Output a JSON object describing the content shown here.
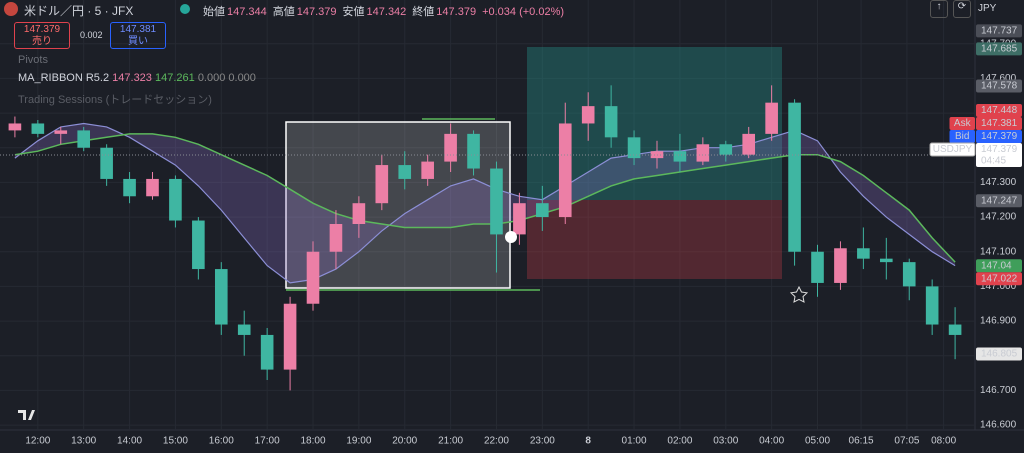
{
  "header": {
    "symbol": "米ドル／円 · 5 · JFX",
    "ohlc": [
      {
        "label": "始値",
        "value": "147.344"
      },
      {
        "label": "高値",
        "value": "147.379"
      },
      {
        "label": "安値",
        "value": "147.342"
      },
      {
        "label": "終値",
        "value": "147.379"
      }
    ],
    "change": "+0.034 (+0.02%)",
    "sell": {
      "price": "147.379",
      "label": "売り"
    },
    "spread": "0.002",
    "buy": {
      "price": "147.381",
      "label": "買い"
    },
    "currency": "JPY"
  },
  "indicators": {
    "pivots": "Pivots",
    "ma_ribbon": {
      "name": "MA_RIBBON R5.2",
      "fast": "147.323",
      "slow": "147.261",
      "extra": "0.000 0.000"
    },
    "sessions": "Trading Sessions (トレードセッション)"
  },
  "chart_data": {
    "type": "candlestick",
    "up_color": "#ec7fa6",
    "down_color": "#3fb6a2",
    "open": [
      147.45,
      147.47,
      147.44,
      147.45,
      147.4,
      147.31,
      147.26,
      147.31,
      147.19,
      147.05,
      146.89,
      146.86,
      146.76,
      146.95,
      147.1,
      147.18,
      147.24,
      147.35,
      147.31,
      147.36,
      147.44,
      147.34,
      147.15,
      147.24,
      147.2,
      147.47,
      147.52,
      147.43,
      147.37,
      147.39,
      147.36,
      147.41,
      147.38,
      147.44,
      147.53,
      147.1,
      147.01,
      147.11,
      147.08,
      147.07,
      147.0,
      146.89
    ],
    "high": [
      147.49,
      147.48,
      147.46,
      147.46,
      147.41,
      147.33,
      147.33,
      147.32,
      147.2,
      147.07,
      146.93,
      146.88,
      146.97,
      147.13,
      147.22,
      147.26,
      147.38,
      147.39,
      147.38,
      147.47,
      147.45,
      147.36,
      147.27,
      147.29,
      147.53,
      147.56,
      147.58,
      147.45,
      147.42,
      147.44,
      147.43,
      147.42,
      147.46,
      147.58,
      147.54,
      147.12,
      147.13,
      147.17,
      147.14,
      147.08,
      147.02,
      146.94
    ],
    "low": [
      147.43,
      147.43,
      147.41,
      147.39,
      147.29,
      147.24,
      147.25,
      147.17,
      147.02,
      146.86,
      146.8,
      146.73,
      146.7,
      146.93,
      147.05,
      147.14,
      147.22,
      147.28,
      147.29,
      147.33,
      147.32,
      147.04,
      147.12,
      147.16,
      147.18,
      147.42,
      147.4,
      147.35,
      147.34,
      147.33,
      147.35,
      147.36,
      147.37,
      147.42,
      147.06,
      146.97,
      146.99,
      147.05,
      147.02,
      146.96,
      146.86,
      146.79
    ],
    "close": [
      147.47,
      147.44,
      147.45,
      147.4,
      147.31,
      147.26,
      147.31,
      147.19,
      147.05,
      146.89,
      146.86,
      146.76,
      146.95,
      147.1,
      147.18,
      147.24,
      147.35,
      147.31,
      147.36,
      147.44,
      147.34,
      147.15,
      147.24,
      147.2,
      147.47,
      147.52,
      147.43,
      147.37,
      147.39,
      147.36,
      147.41,
      147.38,
      147.44,
      147.53,
      147.1,
      147.01,
      147.11,
      147.08,
      147.07,
      147.0,
      146.89,
      146.86
    ],
    "ma_ribbon": {
      "fast_color": "#8c8fd6",
      "slow_color": "#5cb85c",
      "fast": [
        147.37,
        147.42,
        147.46,
        147.47,
        147.46,
        147.43,
        147.39,
        147.35,
        147.29,
        147.22,
        147.14,
        147.06,
        147.01,
        147.02,
        147.05,
        147.1,
        147.16,
        147.21,
        147.25,
        147.29,
        147.31,
        147.28,
        147.26,
        147.25,
        147.29,
        147.33,
        147.37,
        147.38,
        147.39,
        147.39,
        147.4,
        147.4,
        147.41,
        147.43,
        147.45,
        147.42,
        147.33,
        147.26,
        147.2,
        147.15,
        147.1,
        147.06
      ],
      "slow": [
        147.38,
        147.39,
        147.41,
        147.42,
        147.43,
        147.44,
        147.44,
        147.43,
        147.41,
        147.38,
        147.35,
        147.32,
        147.28,
        147.24,
        147.21,
        147.19,
        147.18,
        147.17,
        147.17,
        147.17,
        147.18,
        147.18,
        147.19,
        147.21,
        147.23,
        147.26,
        147.29,
        147.31,
        147.32,
        147.33,
        147.34,
        147.35,
        147.36,
        147.37,
        147.38,
        147.38,
        147.36,
        147.32,
        147.27,
        147.22,
        147.14,
        147.07
      ]
    },
    "xlim": [
      -0.65,
      41.65
    ],
    "xticks": [
      {
        "value": 1,
        "label": "12:00"
      },
      {
        "value": 3,
        "label": "13:00"
      },
      {
        "value": 5,
        "label": "14:00"
      },
      {
        "value": 7,
        "label": "15:00"
      },
      {
        "value": 9,
        "label": "16:00"
      },
      {
        "value": 11,
        "label": "17:00"
      },
      {
        "value": 13,
        "label": "18:00"
      },
      {
        "value": 15,
        "label": "19:00"
      },
      {
        "value": 17,
        "label": "20:00"
      },
      {
        "value": 19,
        "label": "21:00"
      },
      {
        "value": 21,
        "label": "22:00"
      },
      {
        "value": 23,
        "label": "23:00"
      },
      {
        "value": 25,
        "label": "8"
      },
      {
        "value": 27,
        "label": "01:00"
      },
      {
        "value": 29,
        "label": "02:00"
      },
      {
        "value": 31,
        "label": "03:00"
      },
      {
        "value": 33,
        "label": "04:00"
      },
      {
        "value": 35,
        "label": "05:00"
      },
      {
        "value": 36.9,
        "label": "06:15"
      },
      {
        "value": 38.9,
        "label": "07:05"
      },
      {
        "value": 40.5,
        "label": "08:00"
      }
    ],
    "ylim": [
      146.58,
      147.78
    ],
    "yticks": [
      {
        "value": 147.7,
        "label": "147.700"
      },
      {
        "value": 147.6,
        "label": "147.600"
      },
      {
        "value": 147.5,
        "label": "147.500"
      },
      {
        "value": 147.4,
        "label": "147.400"
      },
      {
        "value": 147.3,
        "label": "147.300"
      },
      {
        "value": 147.2,
        "label": "147.200"
      },
      {
        "value": 147.1,
        "label": "147.100"
      },
      {
        "value": 147,
        "label": "147.000"
      },
      {
        "value": 146.9,
        "label": "146.900"
      },
      {
        "value": 146.8,
        "label": "146.800"
      },
      {
        "value": 146.7,
        "label": "146.700"
      },
      {
        "value": 146.6,
        "label": "146.600"
      }
    ],
    "grid": true,
    "price_tags": [
      {
        "value": 147.737,
        "color": "#4b4e57"
      },
      {
        "value": 147.685,
        "color": "#3e6e66"
      },
      {
        "value": 147.578,
        "color": "#5a5d66"
      },
      {
        "value": 147.448,
        "color": "#e0424d"
      },
      {
        "value": 147.381,
        "color": "#e0424d",
        "side": "Ask"
      },
      {
        "value": 147.379,
        "color": "#2962ff",
        "side": "Bid"
      },
      {
        "value": 147.379,
        "color": "#ffffff",
        "side": "USDJPY",
        "sub": "04:45"
      },
      {
        "value": 147.247,
        "color": "#5a5d66"
      },
      {
        "value": 147.04,
        "color": "#3f9e5a"
      },
      {
        "value": 147.022,
        "color": "#e0424d"
      },
      {
        "value": 146.805,
        "color": "#e6e6e6"
      }
    ]
  }
}
